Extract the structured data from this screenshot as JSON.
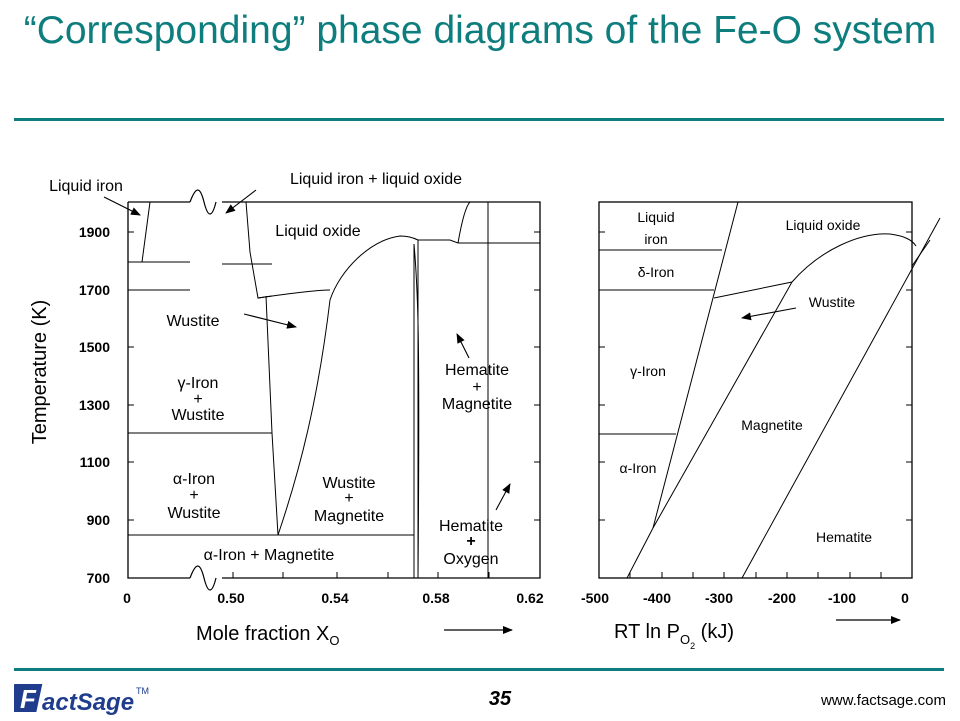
{
  "title": "“Corresponding” phase diagrams of the Fe-O system",
  "left_diagram": {
    "ylabel": "Temperature (K)",
    "xlabel": "Mole fraction X",
    "xlabel_sub": "O",
    "y_ticks": [
      "1900",
      "1700",
      "1500",
      "1300",
      "1100",
      "900",
      "700"
    ],
    "x_ticks": [
      "0",
      "0.50",
      "0.54",
      "0.58",
      "0.62"
    ],
    "labels": {
      "liquid_iron": "Liquid iron",
      "liquid_iron_oxide": "Liquid iron + liquid oxide",
      "liquid_oxide": "Liquid oxide",
      "wustite": "Wustite",
      "gamma_iron": "γ-Iron",
      "plus": "+",
      "wustite2": "Wustite",
      "alpha_iron": "α-Iron",
      "wustite3": "Wustite",
      "wustite4": "Wustite",
      "magnetite": "Magnetite",
      "alpha_iron_magnetite": "α-Iron + Magnetite",
      "hematite": "Hematite",
      "magnetite2": "Magnetite",
      "hematite2": "Hematite",
      "oxygen": "Oxygen"
    }
  },
  "right_diagram": {
    "xlabel": "RT ln P",
    "xlabel_sub": "O",
    "xlabel_sub2": "2",
    "xlabel_unit": " (kJ)",
    "x_ticks": [
      "-500",
      "-400",
      "-300",
      "-200",
      "-100",
      "0"
    ],
    "labels": {
      "liquid_iron_1": "Liquid",
      "liquid_iron_2": "iron",
      "liquid_oxide": "Liquid oxide",
      "delta_iron": "δ-Iron",
      "wustite": "Wustite",
      "gamma_iron": "γ-Iron",
      "magnetite": "Magnetite",
      "alpha_iron": "α-Iron",
      "hematite": "Hematite"
    }
  },
  "page_number": "35",
  "website": "www.factsage.com",
  "logo": {
    "text": "FactSage",
    "tm": "TM"
  },
  "colors": {
    "title": "#0e7d7d",
    "rule": "#0e7d7d",
    "logo": "#1f3d8c"
  }
}
